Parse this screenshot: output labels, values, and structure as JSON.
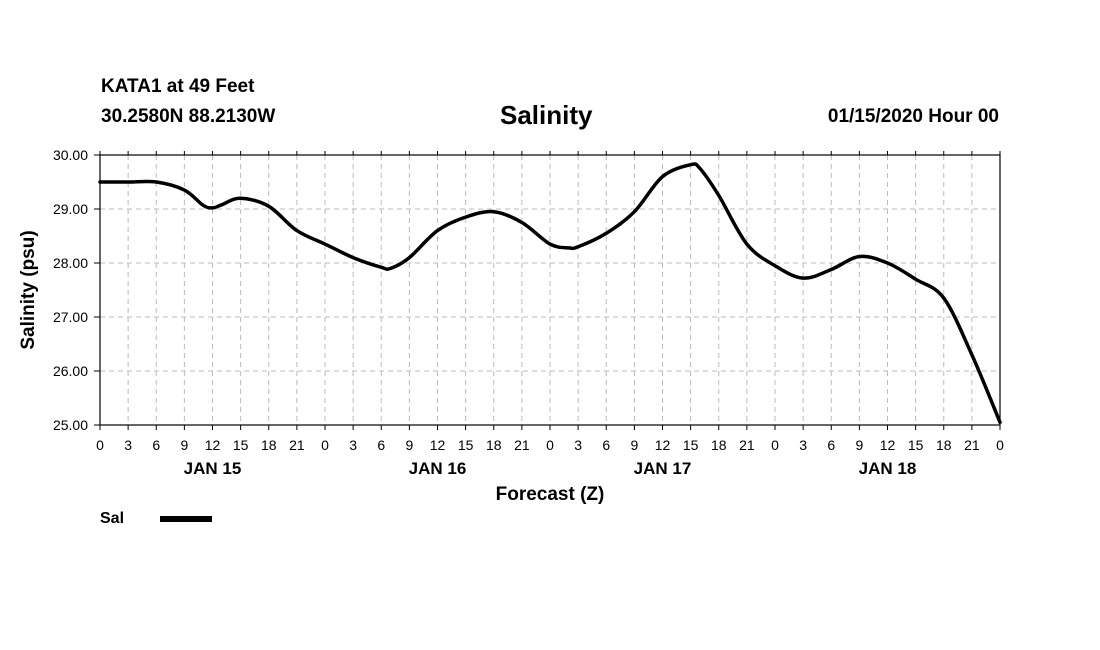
{
  "header": {
    "station": "KATA1 at 49 Feet",
    "coords": "30.2580N 88.2130W",
    "title": "Salinity",
    "timestamp": "01/15/2020 Hour 00"
  },
  "legend": {
    "label": "Sal",
    "color": "#000000"
  },
  "chart_data": {
    "type": "line",
    "title": "Salinity",
    "xlabel": "Forecast (Z)",
    "ylabel": "Salinity (psu)",
    "ylim": [
      25,
      30
    ],
    "xlim": [
      0,
      96
    ],
    "x_unit": "hours from 01/15/2020 00Z",
    "grid": true,
    "y_ticks": [
      "25.00",
      "26.00",
      "27.00",
      "28.00",
      "29.00",
      "30.00"
    ],
    "x_tick_labels": [
      "0",
      "3",
      "6",
      "9",
      "12",
      "15",
      "18",
      "21",
      "0",
      "3",
      "6",
      "9",
      "12",
      "15",
      "18",
      "21",
      "0",
      "3",
      "6",
      "9",
      "12",
      "15",
      "18",
      "21",
      "0",
      "3",
      "6",
      "9",
      "12",
      "15",
      "18",
      "21",
      "0"
    ],
    "day_labels": [
      {
        "label": "JAN 15",
        "x": 12
      },
      {
        "label": "JAN 16",
        "x": 36
      },
      {
        "label": "JAN 17",
        "x": 60
      },
      {
        "label": "JAN 18",
        "x": 84
      }
    ],
    "series": [
      {
        "name": "Sal",
        "color": "#000000",
        "x": [
          0,
          3,
          6,
          9,
          11,
          12,
          13,
          15,
          18,
          21,
          24,
          27,
          30,
          31,
          33,
          36,
          39,
          42,
          45,
          48,
          50,
          51,
          54,
          57,
          60,
          63,
          64,
          66,
          69,
          72,
          75,
          78,
          81,
          84,
          87,
          90,
          93,
          96
        ],
        "values": [
          29.5,
          29.5,
          29.5,
          29.35,
          29.07,
          29.02,
          29.08,
          29.2,
          29.05,
          28.6,
          28.35,
          28.1,
          27.92,
          27.9,
          28.1,
          28.6,
          28.85,
          28.95,
          28.75,
          28.35,
          28.28,
          28.3,
          28.55,
          28.95,
          29.6,
          29.82,
          29.75,
          29.25,
          28.35,
          27.95,
          27.72,
          27.88,
          28.12,
          28.0,
          27.7,
          27.35,
          26.3,
          25.05
        ]
      }
    ]
  }
}
